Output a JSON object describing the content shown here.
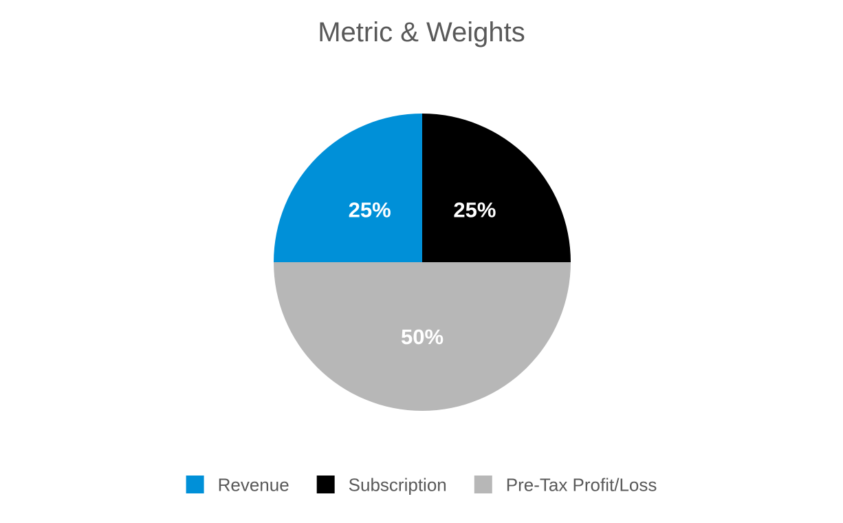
{
  "chart_data": {
    "type": "pie",
    "title": "Metric & Weights",
    "categories": [
      "Revenue",
      "Subscription",
      "Pre-Tax Profit/Loss"
    ],
    "values": [
      25,
      25,
      50
    ],
    "data_labels": [
      "25%",
      "25%",
      "50%"
    ],
    "colors": [
      "#0090d8",
      "#000000",
      "#b7b7b7"
    ],
    "legend": "bottom"
  }
}
